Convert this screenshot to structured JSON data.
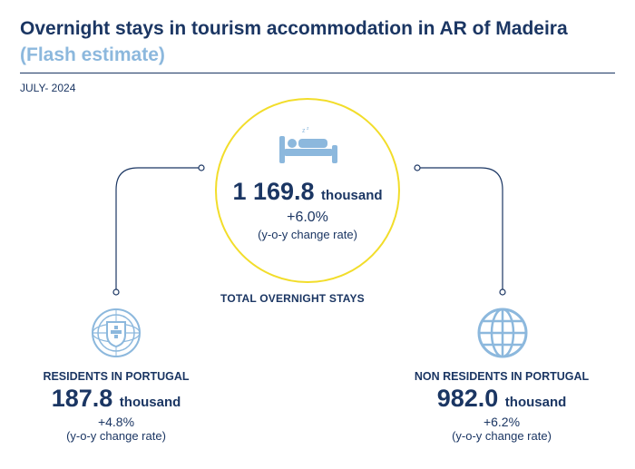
{
  "header": {
    "title": "Overnight stays in tourism accommodation in AR of Madeira",
    "subtitle": "(Flash estimate)",
    "period": "JULY- 2024"
  },
  "total": {
    "value": "1 169.8",
    "unit": "thousand",
    "rate": "+6.0%",
    "rate_note": "(y-o-y change rate)",
    "label": "TOTAL OVERNIGHT STAYS",
    "icon": "bed-icon"
  },
  "residents": {
    "label": "RESIDENTS IN PORTUGAL",
    "value": "187.8",
    "unit": "thousand",
    "rate": "+4.8%",
    "rate_note": "(y-o-y change rate)",
    "icon": "portugal-emblem-icon"
  },
  "non_residents": {
    "label": "NON RESIDENTS IN PORTUGAL",
    "value": "982.0",
    "unit": "thousand",
    "rate": "+6.2%",
    "rate_note": "(y-o-y change rate)",
    "icon": "globe-icon"
  },
  "colors": {
    "navy": "#1b3663",
    "light_blue": "#8cb8dd",
    "circle_border": "#f2dd2a"
  }
}
